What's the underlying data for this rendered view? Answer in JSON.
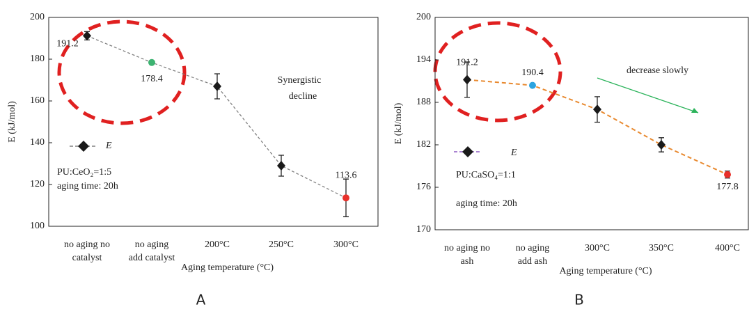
{
  "chart_data": [
    {
      "type": "line",
      "xlabel": "Aging temperature (°C)",
      "ylabel": "E (kJ/mol)",
      "panel_label": "A",
      "categories": [
        [
          "no aging no",
          "catalyst"
        ],
        [
          "no aging",
          "add catalyst"
        ],
        [
          "200°C"
        ],
        [
          "250°C"
        ],
        [
          "300°C"
        ]
      ],
      "series": [
        {
          "name": "E",
          "color": "#808080",
          "values": [
            191.2,
            178.4,
            167,
            129,
            113.6
          ],
          "errors": [
            2,
            0,
            6,
            5,
            9
          ],
          "point_colors": [
            "#1a1a1a",
            "#3cb371",
            "#1a1a1a",
            "#1a1a1a",
            "#e8302a"
          ],
          "value_labels": [
            "191.2",
            "178.4",
            null,
            null,
            "113.6"
          ]
        }
      ],
      "ylim": [
        100,
        200
      ],
      "yticks": [
        100,
        120,
        140,
        160,
        180,
        200
      ],
      "annotations": [
        "Synergistic",
        "decline",
        "PU:CeO₂=1:5",
        "aging time: 20h"
      ]
    },
    {
      "type": "line",
      "xlabel": "Aging temperature (°C)",
      "ylabel": "E (kJ/mol)",
      "panel_label": "B",
      "categories": [
        [
          "no aging no",
          "ash"
        ],
        [
          "no aging",
          "add ash"
        ],
        [
          "300°C"
        ],
        [
          "350°C"
        ],
        [
          "400°C"
        ]
      ],
      "series": [
        {
          "name": "E",
          "color": "#e8892f",
          "values": [
            191.2,
            190.4,
            187,
            182,
            177.8
          ],
          "errors": [
            2.5,
            0,
            1.8,
            1,
            0.5
          ],
          "point_colors": [
            "#1a1a1a",
            "#2aa3e0",
            "#1a1a1a",
            "#1a1a1a",
            "#e8302a"
          ],
          "value_labels": [
            "191.2",
            "190.4",
            null,
            null,
            "177.8"
          ]
        }
      ],
      "ylim": [
        170,
        200
      ],
      "yticks": [
        170,
        176,
        182,
        188,
        194,
        200
      ],
      "annotations": [
        "decrease slowly",
        "PU:CaSO₄=1:1",
        "aging time: 20h"
      ]
    }
  ]
}
